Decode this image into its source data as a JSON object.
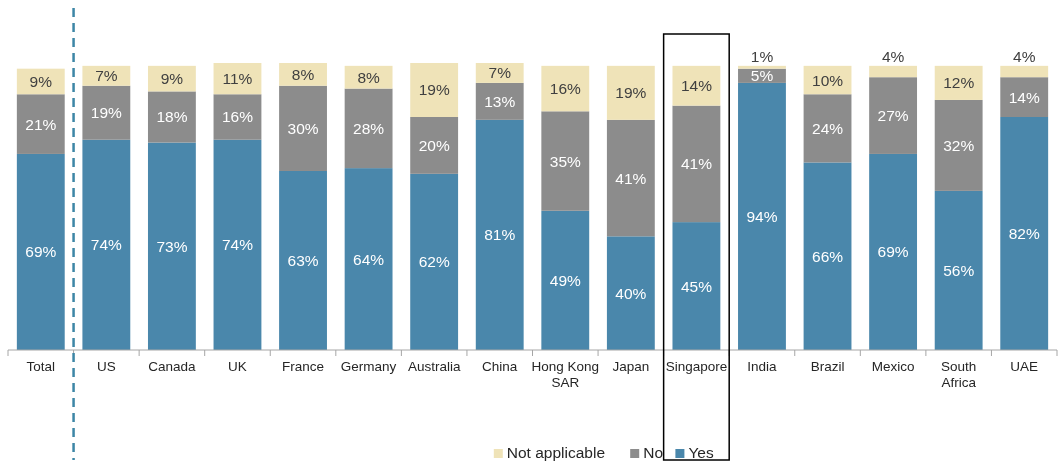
{
  "chart_data": {
    "type": "bar",
    "stacked": true,
    "legend": "bottom",
    "ref_lines": [
      {
        "axis": "x",
        "value": "Total",
        "color": "#3d86a6",
        "line_style": "dashed"
      }
    ],
    "categories": [
      "Total",
      "US",
      "Canada",
      "UK",
      "France",
      "Germany",
      "Australia",
      "China",
      "Hong Kong SAR",
      "Japan",
      "Singapore",
      "India",
      "Brazil",
      "Mexico",
      "South Africa",
      "UAE"
    ],
    "series": [
      {
        "name": "Yes",
        "color": "#4a87ab",
        "values": [
          69,
          74,
          73,
          74,
          63,
          64,
          62,
          81,
          49,
          40,
          45,
          94,
          66,
          69,
          56,
          82
        ],
        "value_labels": [
          "69%",
          "74%",
          "73%",
          "74%",
          "63%",
          "64%",
          "62%",
          "81%",
          "49%",
          "40%",
          "45%",
          "94%",
          "66%",
          "69%",
          "56%",
          "82%"
        ]
      },
      {
        "name": "No",
        "color": "#8c8c8c",
        "values": [
          21,
          19,
          18,
          16,
          30,
          28,
          20,
          13,
          35,
          41,
          41,
          5,
          24,
          27,
          32,
          14
        ],
        "value_labels": [
          "21%",
          "19%",
          "18%",
          "16%",
          "30%",
          "28%",
          "20%",
          "13%",
          "35%",
          "41%",
          "41%",
          "5%",
          "24%",
          "27%",
          "32%",
          "14%"
        ]
      },
      {
        "name": "Not applicable",
        "color": "#efe3b8",
        "values": [
          9,
          7,
          9,
          11,
          8,
          8,
          19,
          7,
          16,
          19,
          14,
          1,
          10,
          4,
          12,
          4
        ],
        "value_labels": [
          "9%",
          "7%",
          "9%",
          "11%",
          "8%",
          "8%",
          "19%",
          "7%",
          "16%",
          "19%",
          "14%",
          "1%",
          "10%",
          "4%",
          "12%",
          "4%"
        ]
      }
    ]
  }
}
